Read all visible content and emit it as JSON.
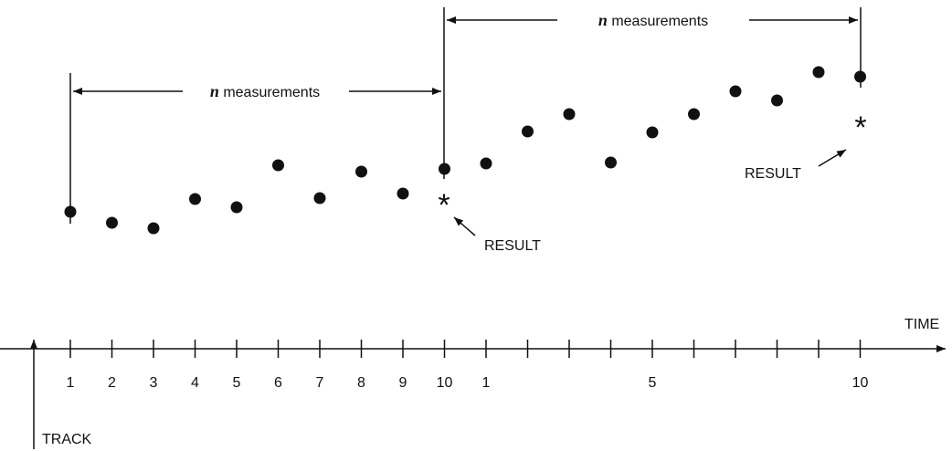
{
  "measurements": [
    {
      "variable": "n",
      "text": "measurements"
    },
    {
      "variable": "n",
      "text": "measurements"
    }
  ],
  "results": [
    "RESULT",
    "RESULT"
  ],
  "axis": {
    "label": "TIME",
    "tick_labels": [
      "1",
      "2",
      "3",
      "4",
      "5",
      "6",
      "7",
      "8",
      "9",
      "10",
      "1",
      "5",
      "10"
    ]
  },
  "track": "TRACK"
}
